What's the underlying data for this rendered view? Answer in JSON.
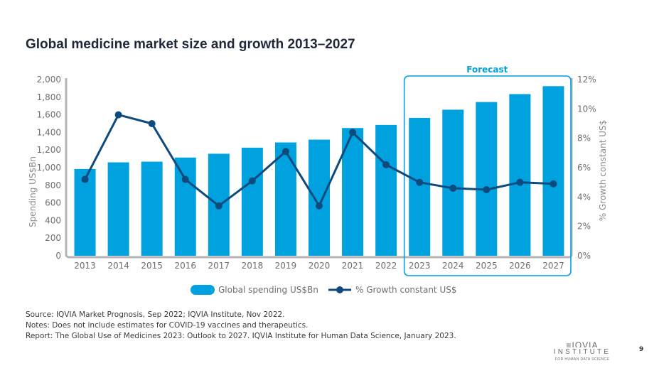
{
  "slide": {
    "title": "Global medicine market size and growth 2013–2027",
    "page_number": "9"
  },
  "chart_data": {
    "type": "bar",
    "title": "Global medicine market size and growth 2013–2027",
    "categories": [
      "2013",
      "2014",
      "2015",
      "2016",
      "2017",
      "2018",
      "2019",
      "2020",
      "2021",
      "2022",
      "2023",
      "2024",
      "2025",
      "2026",
      "2027"
    ],
    "series": [
      {
        "name": "Global spending US$Bn",
        "type": "bar",
        "axis": "left",
        "color": "#00a1df",
        "values": [
          985,
          1060,
          1068,
          1115,
          1158,
          1227,
          1286,
          1318,
          1450,
          1485,
          1565,
          1658,
          1745,
          1835,
          1925
        ]
      },
      {
        "name": "% Growth constant US$",
        "type": "line",
        "axis": "right",
        "color": "#0d4a7e",
        "values": [
          5.2,
          9.6,
          9.0,
          5.2,
          3.4,
          5.1,
          7.1,
          3.4,
          8.4,
          6.2,
          5.0,
          4.6,
          4.5,
          5.0,
          4.9
        ]
      }
    ],
    "ylabel": "Spending US$Bn",
    "y2label": "% Growth constant US$",
    "ylim": [
      0,
      2000
    ],
    "y2lim": [
      0,
      12
    ],
    "yticks": [
      "0",
      "200",
      "400",
      "600",
      "800",
      "1,000",
      "1,200",
      "1,400",
      "1,600",
      "1,800",
      "2,000"
    ],
    "y2ticks": [
      "0%",
      "2%",
      "4%",
      "6%",
      "8%",
      "10%",
      "12%"
    ],
    "forecast_label": "Forecast",
    "forecast_start": "2023",
    "legend": [
      "Global spending US$Bn",
      "% Growth constant US$"
    ],
    "legend_position": "bottom-center"
  },
  "notes": {
    "source": "Source: IQVIA Market Prognosis, Sep 2022; IQVIA Institute, Nov 2022.",
    "notes": "Notes: Does not include estimates for COVID-19 vaccines and therapeutics.",
    "report": "Report: The Global Use of Medicines 2023: Outlook to 2027. IQVIA Institute for Human Data Science, January 2023."
  },
  "logo": {
    "brand": "≡IQVIA",
    "line2": "INSTITUTE",
    "line3": "FOR HUMAN DATA SCIENCE"
  }
}
